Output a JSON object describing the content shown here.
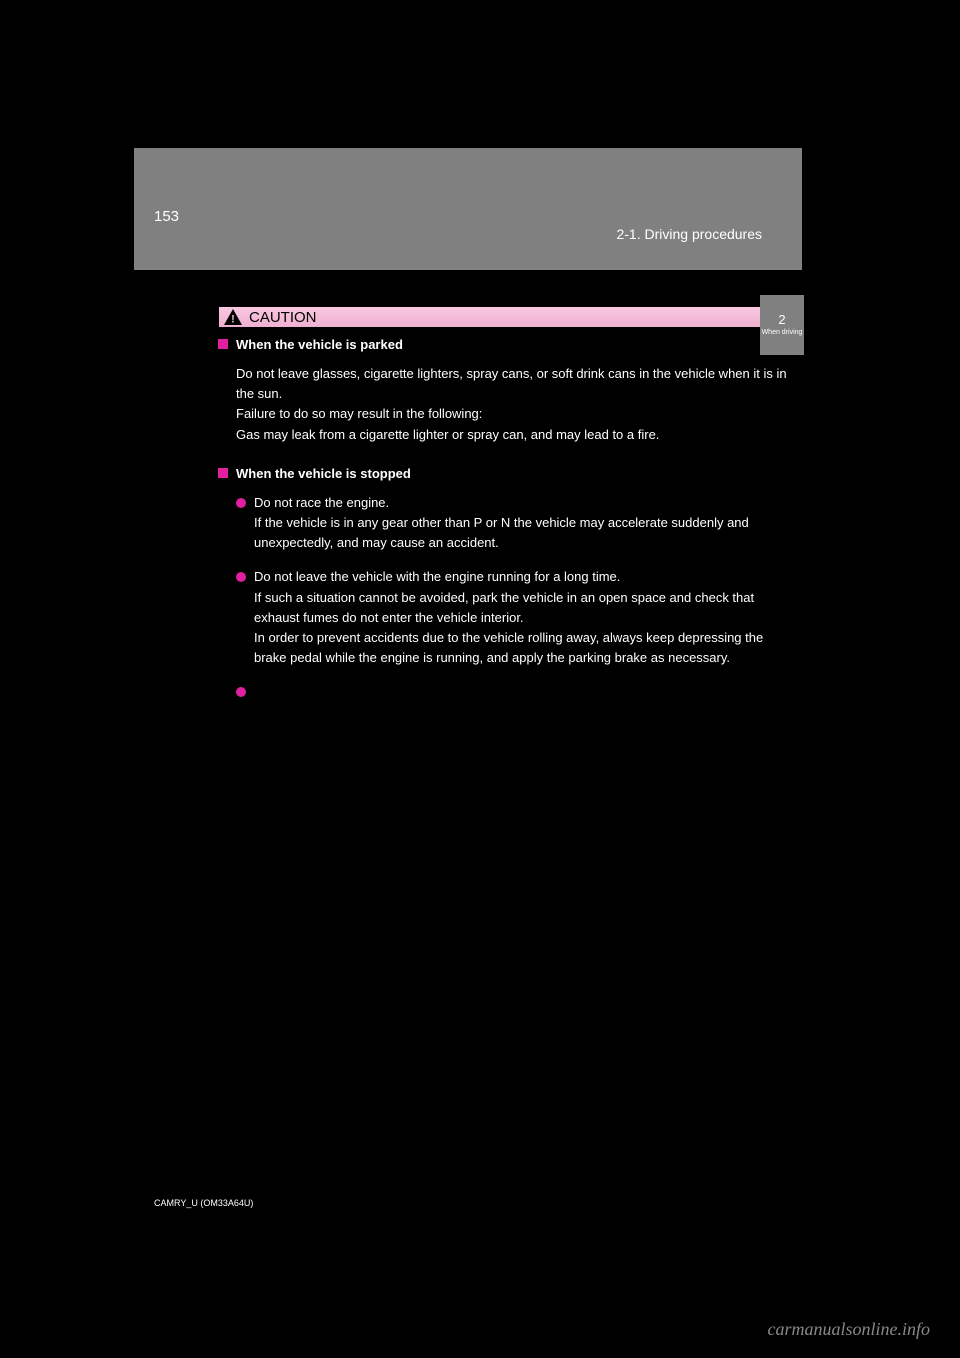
{
  "header": {
    "page_number": "153",
    "section": "2-1. Driving procedures",
    "bg_color": "#808080",
    "text_color": "#ffffff"
  },
  "caution": {
    "label": "CAUTION",
    "bg_gradient_top": "#f8c8e0",
    "bg_gradient_bottom": "#f0b0d0",
    "icon_fill": "#000000"
  },
  "sections": [
    {
      "heading": "When the vehicle is parked",
      "body": "Do not leave glasses, cigarette lighters, spray cans, or soft drink cans in the vehicle when it is in the sun.\nFailure to do so may result in the following:\nGas may leak from a cigarette lighter or spray can, and may lead to a fire."
    }
  ],
  "second_section_heading": "When the vehicle is stopped",
  "bullets": [
    "Do not race the engine.\nIf the vehicle is in any gear other than P or N the vehicle may accelerate suddenly and unexpectedly, and may cause an accident.",
    "Do not leave the vehicle with the engine running for a long time.\nIf such a situation cannot be avoided, park the vehicle in an open space and check that exhaust fumes do not enter the vehicle interior.\nIn order to prevent accidents due to the vehicle rolling away, always keep depressing the brake pedal while the engine is running, and apply the parking brake as necessary.",
    ""
  ],
  "side_tab": {
    "number": "2",
    "label": "When driving",
    "bg_color": "#808080"
  },
  "colors": {
    "body_bg": "#000000",
    "text": "#ffffff",
    "bullet": "#e020a0"
  },
  "watermark": "carmanualsonline.info",
  "doc_id": "CAMRY_U (OM33A64U)"
}
